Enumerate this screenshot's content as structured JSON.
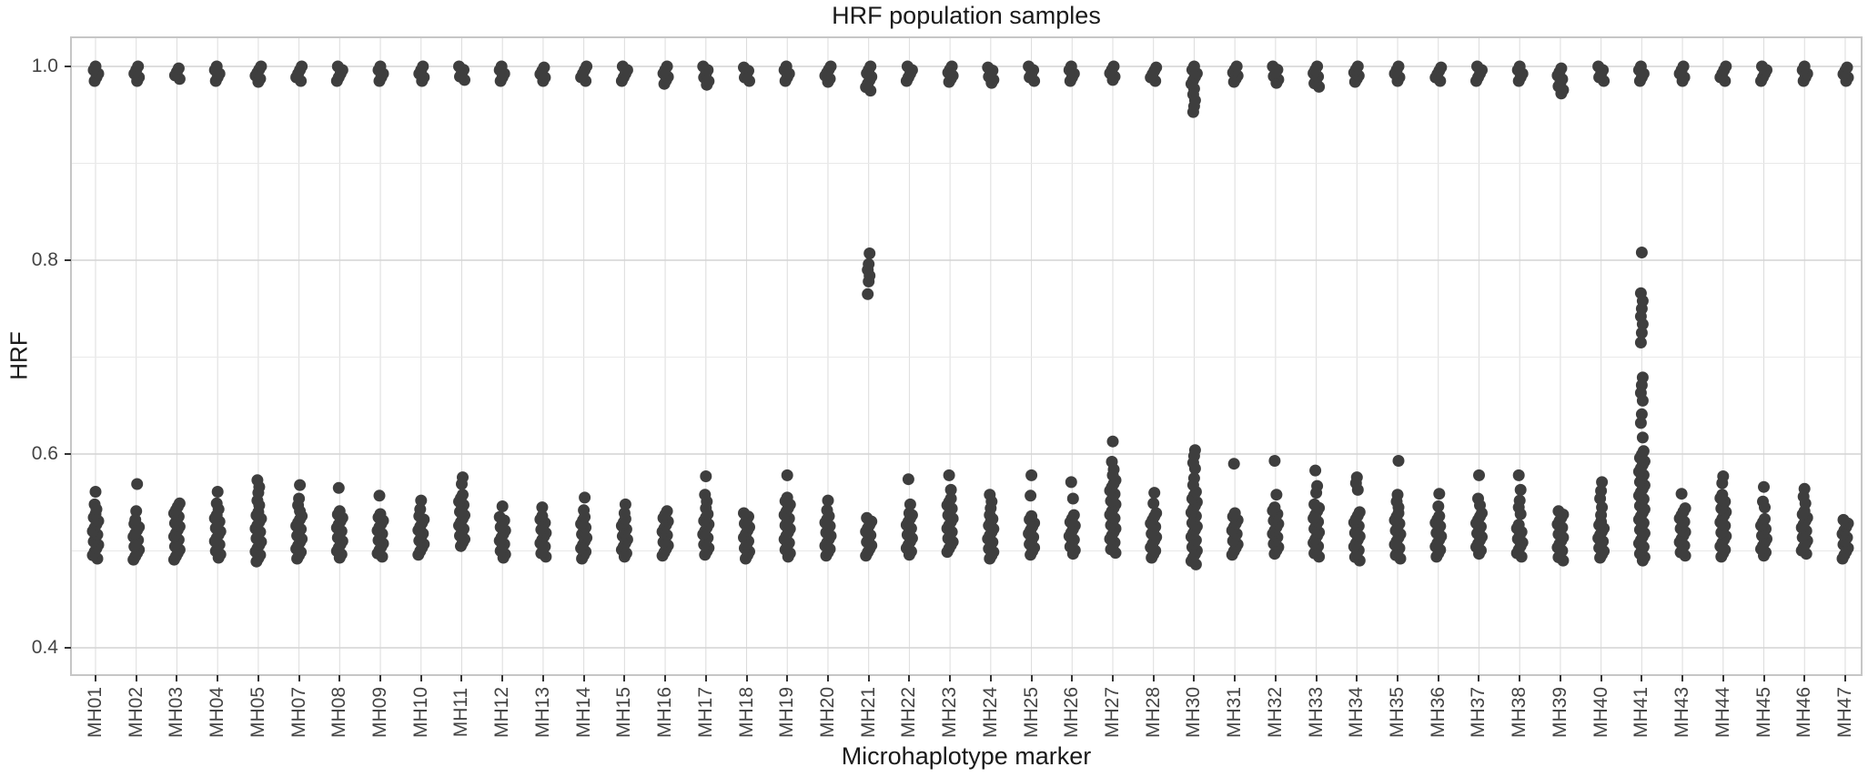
{
  "figure": {
    "title": "HRF population samples",
    "x_axis_title": "Microhaplotype marker",
    "y_axis_title": "HRF"
  },
  "colors": {
    "point": "#3e3e3e",
    "grid_major": "#d4d4d4",
    "grid_minor": "#e9e9e9",
    "grid_vertical": "#dcdcdc",
    "panel_border": "#c6c6c6",
    "tick_text": "#444444",
    "title_text": "#1a1a1a",
    "background": "#ffffff"
  },
  "chart_data": {
    "type": "scatter",
    "title": "HRF population samples",
    "xlabel": "Microhaplotype marker",
    "ylabel": "HRF",
    "ylim": [
      0.373,
      1.029
    ],
    "y_ticks": [
      1.0,
      0.8,
      0.6,
      0.4
    ],
    "y_tick_labels": [
      "1.0",
      "0.8",
      "0.6",
      "0.4"
    ],
    "y_minor_ticks": [
      0.9,
      0.7,
      0.5
    ],
    "grid": "on",
    "legend": "none",
    "point_style": "filled-circle",
    "description": "Strip plot; each marker shows a dense cluster of points near HRF 1.0 and a dense cluster near 0.49-0.58, with listed outliers between.",
    "categories": [
      "MH01",
      "MH02",
      "MH03",
      "MH04",
      "MH05",
      "MH07",
      "MH08",
      "MH09",
      "MH10",
      "MH11",
      "MH12",
      "MH13",
      "MH14",
      "MH15",
      "MH16",
      "MH17",
      "MH18",
      "MH19",
      "MH20",
      "MH21",
      "MH22",
      "MH23",
      "MH24",
      "MH25",
      "MH26",
      "MH27",
      "MH28",
      "MH30",
      "MH31",
      "MH32",
      "MH33",
      "MH34",
      "MH35",
      "MH36",
      "MH37",
      "MH38",
      "MH39",
      "MH40",
      "MH41",
      "MH43",
      "MH44",
      "MH45",
      "MH46",
      "MH47"
    ],
    "series": [
      {
        "marker": "MH01",
        "top": [
          0.985,
          1.0
        ],
        "top_outliers": [],
        "mid_outliers": [],
        "bottom": [
          0.492,
          0.538
        ],
        "bottom_outliers": [
          0.561,
          0.548,
          0.543
        ]
      },
      {
        "marker": "MH02",
        "top": [
          0.985,
          1.0
        ],
        "top_outliers": [],
        "mid_outliers": [],
        "bottom": [
          0.491,
          0.528
        ],
        "bottom_outliers": [
          0.569,
          0.541,
          0.532
        ]
      },
      {
        "marker": "MH03",
        "top": [
          0.987,
          0.998
        ],
        "top_outliers": [],
        "mid_outliers": [],
        "bottom": [
          0.491,
          0.549
        ],
        "bottom_outliers": []
      },
      {
        "marker": "MH04",
        "top": [
          0.985,
          1.0
        ],
        "top_outliers": [],
        "mid_outliers": [],
        "bottom": [
          0.493,
          0.537
        ],
        "bottom_outliers": [
          0.561,
          0.549,
          0.543
        ]
      },
      {
        "marker": "MH05",
        "top": [
          0.984,
          1.0
        ],
        "top_outliers": [],
        "mid_outliers": [],
        "bottom": [
          0.489,
          0.54
        ],
        "bottom_outliers": [
          0.573,
          0.566,
          0.56,
          0.552,
          0.547
        ]
      },
      {
        "marker": "MH07",
        "top": [
          0.985,
          1.0
        ],
        "top_outliers": [],
        "mid_outliers": [],
        "bottom": [
          0.492,
          0.536
        ],
        "bottom_outliers": [
          0.568,
          0.554,
          0.547,
          0.541
        ]
      },
      {
        "marker": "MH08",
        "top": [
          0.985,
          1.0
        ],
        "top_outliers": [],
        "mid_outliers": [],
        "bottom": [
          0.493,
          0.541
        ],
        "bottom_outliers": [
          0.565
        ]
      },
      {
        "marker": "MH09",
        "top": [
          0.985,
          1.0
        ],
        "top_outliers": [],
        "mid_outliers": [],
        "bottom": [
          0.494,
          0.538
        ],
        "bottom_outliers": [
          0.557
        ]
      },
      {
        "marker": "MH10",
        "top": [
          0.985,
          1.0
        ],
        "top_outliers": [],
        "mid_outliers": [],
        "bottom": [
          0.496,
          0.536
        ],
        "bottom_outliers": [
          0.552,
          0.543
        ]
      },
      {
        "marker": "MH11",
        "top": [
          0.986,
          1.0
        ],
        "top_outliers": [],
        "mid_outliers": [],
        "bottom": [
          0.505,
          0.558
        ],
        "bottom_outliers": [
          0.576,
          0.569
        ]
      },
      {
        "marker": "MH12",
        "top": [
          0.985,
          1.0
        ],
        "top_outliers": [],
        "mid_outliers": [],
        "bottom": [
          0.493,
          0.535
        ],
        "bottom_outliers": [
          0.546
        ]
      },
      {
        "marker": "MH13",
        "top": [
          0.985,
          0.999
        ],
        "top_outliers": [],
        "mid_outliers": [],
        "bottom": [
          0.494,
          0.536
        ],
        "bottom_outliers": [
          0.545
        ]
      },
      {
        "marker": "MH14",
        "top": [
          0.985,
          1.0
        ],
        "top_outliers": [],
        "mid_outliers": [],
        "bottom": [
          0.492,
          0.535
        ],
        "bottom_outliers": [
          0.555,
          0.542
        ]
      },
      {
        "marker": "MH15",
        "top": [
          0.985,
          1.0
        ],
        "top_outliers": [],
        "mid_outliers": [],
        "bottom": [
          0.494,
          0.533
        ],
        "bottom_outliers": [
          0.548,
          0.539
        ]
      },
      {
        "marker": "MH16",
        "top": [
          0.982,
          1.0
        ],
        "top_outliers": [],
        "mid_outliers": [],
        "bottom": [
          0.495,
          0.541
        ],
        "bottom_outliers": []
      },
      {
        "marker": "MH17",
        "top": [
          0.981,
          1.0
        ],
        "top_outliers": [],
        "mid_outliers": [],
        "bottom": [
          0.496,
          0.538
        ],
        "bottom_outliers": [
          0.577,
          0.558,
          0.551,
          0.544
        ]
      },
      {
        "marker": "MH18",
        "top": [
          0.985,
          0.999
        ],
        "top_outliers": [],
        "mid_outliers": [],
        "bottom": [
          0.492,
          0.539
        ],
        "bottom_outliers": []
      },
      {
        "marker": "MH19",
        "top": [
          0.985,
          1.0
        ],
        "top_outliers": [],
        "mid_outliers": [],
        "bottom": [
          0.494,
          0.555
        ],
        "bottom_outliers": [
          0.578
        ]
      },
      {
        "marker": "MH20",
        "top": [
          0.984,
          1.0
        ],
        "top_outliers": [],
        "mid_outliers": [],
        "bottom": [
          0.495,
          0.536
        ],
        "bottom_outliers": [
          0.552,
          0.542
        ]
      },
      {
        "marker": "MH21",
        "top": [
          0.975,
          1.0
        ],
        "top_outliers": [],
        "mid_outliers": [
          0.807,
          0.796,
          0.79,
          0.784,
          0.778,
          0.765
        ],
        "bottom": [
          0.495,
          0.534
        ],
        "bottom_outliers": []
      },
      {
        "marker": "MH22",
        "top": [
          0.985,
          1.0
        ],
        "top_outliers": [],
        "mid_outliers": [],
        "bottom": [
          0.496,
          0.537
        ],
        "bottom_outliers": [
          0.574,
          0.548,
          0.539
        ]
      },
      {
        "marker": "MH23",
        "top": [
          0.984,
          1.0
        ],
        "top_outliers": [],
        "mid_outliers": [],
        "bottom": [
          0.499,
          0.554
        ],
        "bottom_outliers": [
          0.578,
          0.563
        ]
      },
      {
        "marker": "MH24",
        "top": [
          0.983,
          0.999
        ],
        "top_outliers": [],
        "mid_outliers": [],
        "bottom": [
          0.492,
          0.533
        ],
        "bottom_outliers": [
          0.558,
          0.551,
          0.544,
          0.537
        ]
      },
      {
        "marker": "MH25",
        "top": [
          0.985,
          1.0
        ],
        "top_outliers": [],
        "mid_outliers": [],
        "bottom": [
          0.496,
          0.536
        ],
        "bottom_outliers": [
          0.578,
          0.557
        ]
      },
      {
        "marker": "MH26",
        "top": [
          0.985,
          1.0
        ],
        "top_outliers": [],
        "mid_outliers": [],
        "bottom": [
          0.497,
          0.537
        ],
        "bottom_outliers": [
          0.571,
          0.554
        ]
      },
      {
        "marker": "MH27",
        "top": [
          0.986,
          1.0
        ],
        "top_outliers": [],
        "mid_outliers": [],
        "bottom": [
          0.498,
          0.573
        ],
        "bottom_outliers": [
          0.613,
          0.592,
          0.584,
          0.578
        ]
      },
      {
        "marker": "MH28",
        "top": [
          0.985,
          0.999
        ],
        "top_outliers": [],
        "mid_outliers": [],
        "bottom": [
          0.493,
          0.539
        ],
        "bottom_outliers": [
          0.56,
          0.549
        ]
      },
      {
        "marker": "MH30",
        "top": [
          0.982,
          1.0
        ],
        "top_outliers": [
          0.977,
          0.971,
          0.965,
          0.959,
          0.953
        ],
        "mid_outliers": [],
        "bottom": [
          0.486,
          0.561
        ],
        "bottom_outliers": [
          0.604,
          0.598,
          0.591,
          0.585,
          0.575,
          0.568
        ]
      },
      {
        "marker": "MH31",
        "top": [
          0.984,
          1.0
        ],
        "top_outliers": [],
        "mid_outliers": [],
        "bottom": [
          0.496,
          0.539
        ],
        "bottom_outliers": [
          0.59
        ]
      },
      {
        "marker": "MH32",
        "top": [
          0.983,
          1.0
        ],
        "top_outliers": [],
        "mid_outliers": [],
        "bottom": [
          0.497,
          0.545
        ],
        "bottom_outliers": [
          0.593,
          0.558
        ]
      },
      {
        "marker": "MH33",
        "top": [
          0.979,
          1.0
        ],
        "top_outliers": [],
        "mid_outliers": [],
        "bottom": [
          0.494,
          0.548
        ],
        "bottom_outliers": [
          0.583,
          0.567,
          0.56
        ]
      },
      {
        "marker": "MH34",
        "top": [
          0.984,
          1.0
        ],
        "top_outliers": [],
        "mid_outliers": [],
        "bottom": [
          0.49,
          0.54
        ],
        "bottom_outliers": [
          0.576,
          0.57,
          0.563
        ]
      },
      {
        "marker": "MH35",
        "top": [
          0.985,
          1.0
        ],
        "top_outliers": [],
        "mid_outliers": [],
        "bottom": [
          0.492,
          0.539
        ],
        "bottom_outliers": [
          0.593,
          0.558,
          0.551,
          0.545
        ]
      },
      {
        "marker": "MH36",
        "top": [
          0.985,
          0.999
        ],
        "top_outliers": [],
        "mid_outliers": [],
        "bottom": [
          0.494,
          0.536
        ],
        "bottom_outliers": [
          0.559,
          0.546
        ]
      },
      {
        "marker": "MH37",
        "top": [
          0.985,
          1.0
        ],
        "top_outliers": [],
        "mid_outliers": [],
        "bottom": [
          0.497,
          0.539
        ],
        "bottom_outliers": [
          0.578,
          0.554,
          0.547
        ]
      },
      {
        "marker": "MH38",
        "top": [
          0.985,
          1.0
        ],
        "top_outliers": [],
        "mid_outliers": [],
        "bottom": [
          0.494,
          0.527
        ],
        "bottom_outliers": [
          0.578,
          0.563,
          0.552,
          0.545,
          0.538
        ]
      },
      {
        "marker": "MH39",
        "top": [
          0.972,
          0.998
        ],
        "top_outliers": [],
        "mid_outliers": [],
        "bottom": [
          0.49,
          0.541
        ],
        "bottom_outliers": []
      },
      {
        "marker": "MH40",
        "top": [
          0.985,
          1.0
        ],
        "top_outliers": [],
        "mid_outliers": [],
        "bottom": [
          0.493,
          0.53
        ],
        "bottom_outliers": [
          0.571,
          0.562,
          0.554,
          0.545,
          0.537
        ]
      },
      {
        "marker": "MH41",
        "top": [
          0.985,
          1.0
        ],
        "top_outliers": [],
        "mid_outliers": [
          0.808,
          0.766,
          0.758,
          0.75,
          0.742,
          0.734,
          0.725,
          0.715,
          0.679,
          0.671,
          0.663,
          0.655,
          0.641,
          0.632,
          0.617
        ],
        "bottom": [
          0.49,
          0.603
        ],
        "bottom_outliers": []
      },
      {
        "marker": "MH43",
        "top": [
          0.985,
          1.0
        ],
        "top_outliers": [],
        "mid_outliers": [],
        "bottom": [
          0.495,
          0.544
        ],
        "bottom_outliers": [
          0.559
        ]
      },
      {
        "marker": "MH44",
        "top": [
          0.985,
          1.0
        ],
        "top_outliers": [],
        "mid_outliers": [],
        "bottom": [
          0.494,
          0.558
        ],
        "bottom_outliers": [
          0.577,
          0.57
        ]
      },
      {
        "marker": "MH45",
        "top": [
          0.985,
          1.0
        ],
        "top_outliers": [],
        "mid_outliers": [],
        "bottom": [
          0.495,
          0.533
        ],
        "bottom_outliers": [
          0.566,
          0.551,
          0.545
        ]
      },
      {
        "marker": "MH46",
        "top": [
          0.985,
          1.0
        ],
        "top_outliers": [],
        "mid_outliers": [],
        "bottom": [
          0.497,
          0.541
        ],
        "bottom_outliers": [
          0.564,
          0.556,
          0.549
        ]
      },
      {
        "marker": "MH47",
        "top": [
          0.985,
          0.999
        ],
        "top_outliers": [],
        "mid_outliers": [],
        "bottom": [
          0.492,
          0.532
        ],
        "bottom_outliers": []
      }
    ]
  }
}
